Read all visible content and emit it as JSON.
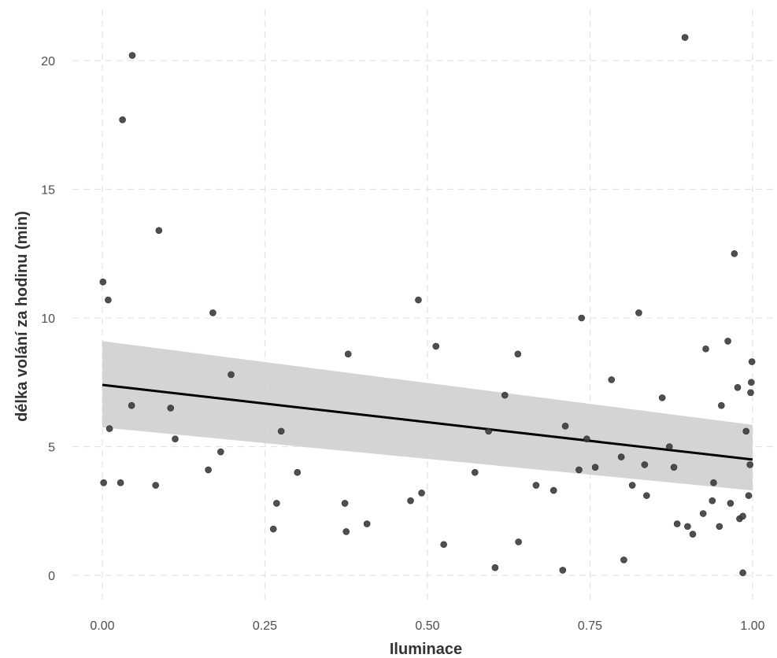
{
  "chart_data": {
    "type": "scatter",
    "xlabel": "Iluminace",
    "ylabel": "délka volání za hodinu (min)",
    "xlim": [
      -0.05,
      1.05
    ],
    "ylim": [
      -0.9,
      21.3
    ],
    "x_ticks": [
      0.0,
      0.25,
      0.5,
      0.75,
      1.0
    ],
    "x_tick_labels": [
      "0.00",
      "0.25",
      "0.50",
      "0.75",
      "1.00"
    ],
    "y_ticks": [
      0,
      5,
      10,
      15,
      20
    ],
    "y_tick_labels": [
      "0",
      "5",
      "10",
      "15",
      "20"
    ],
    "grid": true,
    "legend": "none",
    "colors": {
      "points": "#3d3d3d",
      "fit_line": "#000000",
      "confidence_band": "#cfcfcf",
      "grid": "#e3e3e3"
    },
    "fit": {
      "method": "linear",
      "x": [
        0.0,
        1.0
      ],
      "y": [
        7.4,
        4.5
      ],
      "ci_lower": [
        5.75,
        3.3
      ],
      "ci_upper": [
        9.1,
        5.85
      ]
    },
    "points": [
      {
        "x": 0.001,
        "y": 11.4
      },
      {
        "x": 0.009,
        "y": 10.7
      },
      {
        "x": 0.031,
        "y": 17.7
      },
      {
        "x": 0.046,
        "y": 20.2
      },
      {
        "x": 0.087,
        "y": 13.4
      },
      {
        "x": 0.002,
        "y": 3.6
      },
      {
        "x": 0.011,
        "y": 5.7
      },
      {
        "x": 0.028,
        "y": 3.6
      },
      {
        "x": 0.045,
        "y": 6.6
      },
      {
        "x": 0.082,
        "y": 3.5
      },
      {
        "x": 0.105,
        "y": 6.5
      },
      {
        "x": 0.112,
        "y": 5.3
      },
      {
        "x": 0.163,
        "y": 4.1
      },
      {
        "x": 0.17,
        "y": 10.2
      },
      {
        "x": 0.182,
        "y": 4.8
      },
      {
        "x": 0.198,
        "y": 7.8
      },
      {
        "x": 0.263,
        "y": 1.8
      },
      {
        "x": 0.268,
        "y": 2.8
      },
      {
        "x": 0.275,
        "y": 5.6
      },
      {
        "x": 0.3,
        "y": 4.0
      },
      {
        "x": 0.373,
        "y": 2.8
      },
      {
        "x": 0.375,
        "y": 1.7
      },
      {
        "x": 0.378,
        "y": 8.6
      },
      {
        "x": 0.407,
        "y": 2.0
      },
      {
        "x": 0.474,
        "y": 2.9
      },
      {
        "x": 0.486,
        "y": 10.7
      },
      {
        "x": 0.491,
        "y": 3.2
      },
      {
        "x": 0.513,
        "y": 8.9
      },
      {
        "x": 0.525,
        "y": 1.2
      },
      {
        "x": 0.573,
        "y": 4.0
      },
      {
        "x": 0.594,
        "y": 5.6
      },
      {
        "x": 0.604,
        "y": 0.3
      },
      {
        "x": 0.619,
        "y": 7.0
      },
      {
        "x": 0.639,
        "y": 8.6
      },
      {
        "x": 0.64,
        "y": 1.3
      },
      {
        "x": 0.667,
        "y": 3.5
      },
      {
        "x": 0.694,
        "y": 3.3
      },
      {
        "x": 0.708,
        "y": 0.2
      },
      {
        "x": 0.712,
        "y": 5.8
      },
      {
        "x": 0.733,
        "y": 4.1
      },
      {
        "x": 0.737,
        "y": 10.0
      },
      {
        "x": 0.745,
        "y": 5.3
      },
      {
        "x": 0.758,
        "y": 4.2
      },
      {
        "x": 0.783,
        "y": 7.6
      },
      {
        "x": 0.798,
        "y": 4.6
      },
      {
        "x": 0.802,
        "y": 0.6
      },
      {
        "x": 0.815,
        "y": 3.5
      },
      {
        "x": 0.825,
        "y": 10.2
      },
      {
        "x": 0.834,
        "y": 4.3
      },
      {
        "x": 0.837,
        "y": 3.1
      },
      {
        "x": 0.861,
        "y": 6.9
      },
      {
        "x": 0.872,
        "y": 5.0
      },
      {
        "x": 0.879,
        "y": 4.2
      },
      {
        "x": 0.884,
        "y": 2.0
      },
      {
        "x": 0.896,
        "y": 20.9
      },
      {
        "x": 0.9,
        "y": 1.9
      },
      {
        "x": 0.908,
        "y": 1.6
      },
      {
        "x": 0.924,
        "y": 2.4
      },
      {
        "x": 0.928,
        "y": 8.8
      },
      {
        "x": 0.938,
        "y": 2.9
      },
      {
        "x": 0.94,
        "y": 3.6
      },
      {
        "x": 0.949,
        "y": 1.9
      },
      {
        "x": 0.952,
        "y": 6.6
      },
      {
        "x": 0.962,
        "y": 9.1
      },
      {
        "x": 0.966,
        "y": 2.8
      },
      {
        "x": 0.972,
        "y": 12.5
      },
      {
        "x": 0.977,
        "y": 7.3
      },
      {
        "x": 0.98,
        "y": 2.2
      },
      {
        "x": 0.985,
        "y": 2.3
      },
      {
        "x": 0.985,
        "y": 0.1
      },
      {
        "x": 0.99,
        "y": 5.6
      },
      {
        "x": 0.994,
        "y": 3.1
      },
      {
        "x": 0.996,
        "y": 4.3
      },
      {
        "x": 0.997,
        "y": 7.1
      },
      {
        "x": 0.998,
        "y": 7.5
      },
      {
        "x": 0.999,
        "y": 8.3
      }
    ]
  }
}
